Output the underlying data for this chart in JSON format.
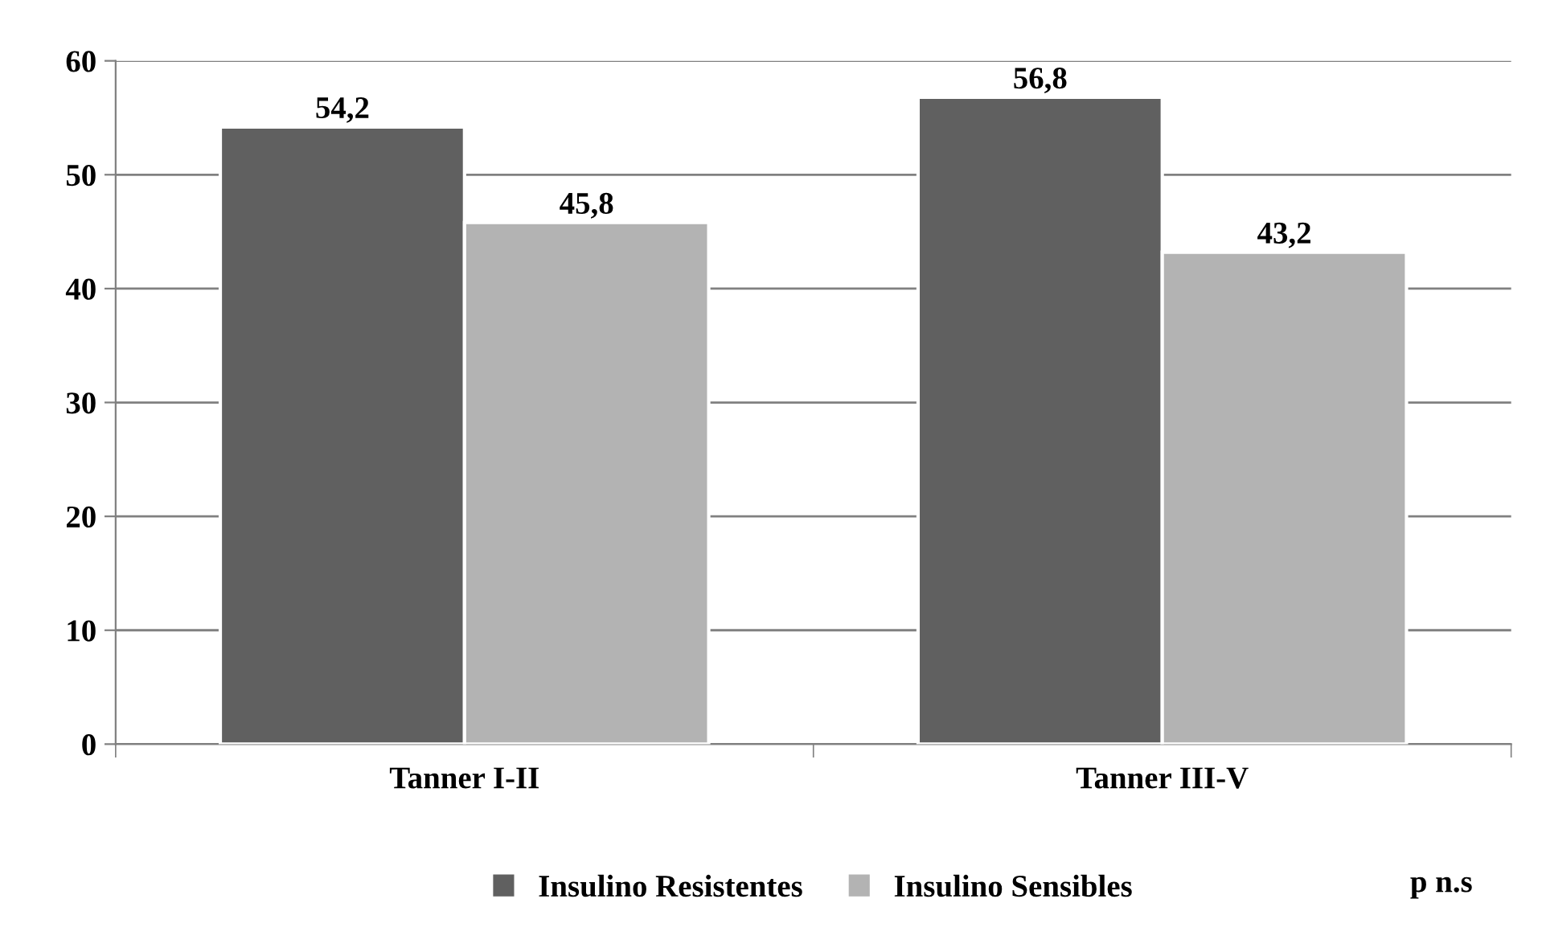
{
  "chart_data": {
    "type": "bar",
    "categories": [
      "Tanner I-II",
      "Tanner III-V"
    ],
    "series": [
      {
        "name": "Insulino Resistentes",
        "color": "#606060",
        "values": [
          54.2,
          56.8
        ],
        "value_labels": [
          "54,2",
          "56,8"
        ]
      },
      {
        "name": "Insulino Sensibles",
        "color": "#b3b3b3",
        "values": [
          45.8,
          43.2
        ],
        "value_labels": [
          "45,8",
          "43,2"
        ]
      }
    ],
    "ylim": [
      0,
      60
    ],
    "yticks": [
      0,
      10,
      20,
      30,
      40,
      50,
      60
    ],
    "grid": "y",
    "legend": "bottom",
    "annotations": [
      "p n.s"
    ]
  }
}
